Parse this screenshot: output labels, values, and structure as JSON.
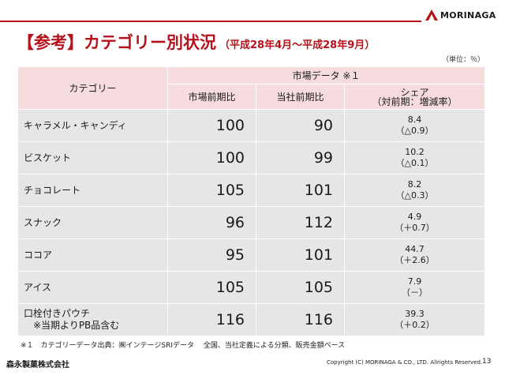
{
  "logo": {
    "text": "MORINAGA"
  },
  "title": {
    "main": "【参考】カテゴリー別状況",
    "sub": "（平成28年4月～平成28年9月）"
  },
  "unit_note": "（単位：％）",
  "table": {
    "header": {
      "category": "カテゴリー",
      "market_data": "市場データ ※１",
      "market_yoy": "市場前期比",
      "company_yoy": "当社前期比",
      "share_line1": "シェア",
      "share_line2": "（対前期：増減率）"
    },
    "rows": [
      {
        "category": "キャラメル・キャンディ",
        "category_line2": "",
        "market": "100",
        "company": "90",
        "share": "8.4",
        "share_change": "（△0.9）"
      },
      {
        "category": "ビスケット",
        "category_line2": "",
        "market": "100",
        "company": "99",
        "share": "10.2",
        "share_change": "（△0.1）"
      },
      {
        "category": "チョコレート",
        "category_line2": "",
        "market": "105",
        "company": "101",
        "share": "8.2",
        "share_change": "（△0.3）"
      },
      {
        "category": "スナック",
        "category_line2": "",
        "market": "96",
        "company": "112",
        "share": "4.9",
        "share_change": "（＋0.7）"
      },
      {
        "category": "ココア",
        "category_line2": "",
        "market": "95",
        "company": "101",
        "share": "44.7",
        "share_change": "（＋2.6）"
      },
      {
        "category": "アイス",
        "category_line2": "",
        "market": "105",
        "company": "105",
        "share": "7.9",
        "share_change": "（－）"
      },
      {
        "category": "口栓付きパウチ",
        "category_line2": "※当期よりPB品含む",
        "market": "116",
        "company": "116",
        "share": "39.3",
        "share_change": "（＋0.2）"
      }
    ]
  },
  "footnote": "※１　カテゴリーデータ出典：㈱インテージSRIデータ　 全国、当社定義による分類、販売金額ベース",
  "company_name": "森永製菓株式会社",
  "copyright": "Copyright (C) MORINAGA & CO., LTD. Allrights Reserved.",
  "page_number": "13",
  "colors": {
    "accent": "#b5121b",
    "header_bg": "#f7dcdf",
    "row_bg": "#e6e6e6"
  }
}
